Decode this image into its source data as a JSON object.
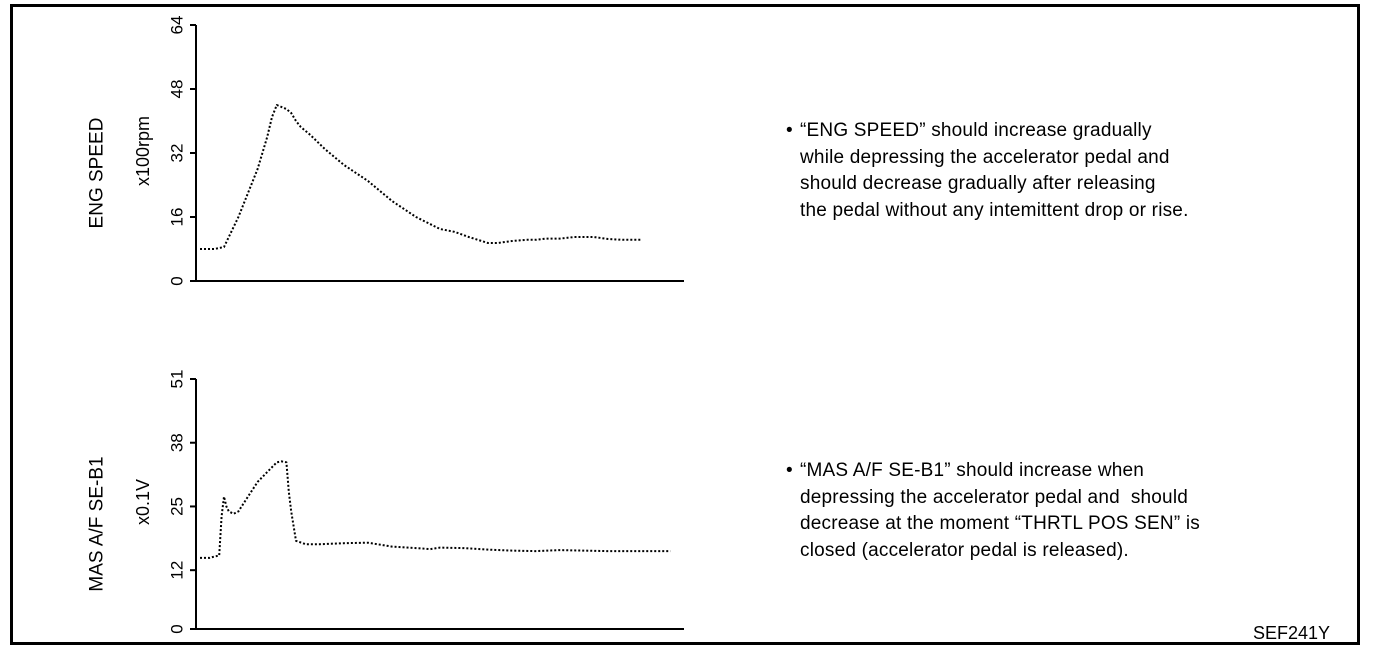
{
  "chart_data": [
    {
      "type": "line",
      "ylabel": "ENG SPEED",
      "yunit": "x100rpm",
      "yticks": [
        "0",
        "16",
        "32",
        "48",
        "64"
      ],
      "ylim": [
        0,
        64
      ],
      "xlim": [
        0,
        100
      ],
      "x": [
        0,
        3,
        5,
        6,
        8,
        10,
        12,
        14,
        15,
        16,
        18,
        19,
        20,
        21,
        23,
        26,
        30,
        35,
        40,
        45,
        50,
        53,
        56,
        60,
        62,
        65,
        68,
        70,
        72,
        75,
        78,
        82,
        85,
        88,
        90,
        92
      ],
      "series": [
        {
          "values": [
            8,
            8,
            8.5,
            11,
            16,
            22,
            28,
            36,
            41,
            44,
            43,
            42,
            40,
            38.5,
            36.5,
            33,
            29,
            25,
            20,
            16,
            13,
            12.3,
            11,
            9.5,
            9.5,
            10,
            10.3,
            10.3,
            10.6,
            10.6,
            11,
            11,
            10.5,
            10.3,
            10.3,
            10.3
          ]
        }
      ]
    },
    {
      "type": "line",
      "ylabel": "MAS A/F SE-B1",
      "yunit": "x0.1V",
      "yticks": [
        "0",
        "12",
        "25",
        "38",
        "51"
      ],
      "ylim": [
        0,
        51
      ],
      "xlim": [
        0,
        100
      ],
      "x": [
        0,
        2,
        3,
        4,
        4.5,
        5,
        5.5,
        6,
        7,
        8,
        9,
        10,
        11,
        12,
        13,
        14,
        15,
        16,
        17,
        18,
        18.5,
        19,
        20,
        22,
        25,
        30,
        35,
        40,
        45,
        48,
        50,
        55,
        60,
        65,
        70,
        75,
        80,
        85,
        90,
        95,
        98
      ],
      "series": [
        {
          "values": [
            14.5,
            14.5,
            14.8,
            15,
            23,
            27,
            25,
            24,
            23.5,
            24,
            25.5,
            27,
            28.5,
            30,
            31,
            32,
            33,
            34,
            34.2,
            34,
            28,
            24,
            18,
            17.3,
            17.3,
            17.5,
            17.6,
            16.8,
            16.5,
            16.3,
            16.6,
            16.5,
            16.2,
            16,
            15.9,
            16.1,
            16,
            15.9,
            15.9,
            15.9,
            15.9
          ]
        }
      ]
    }
  ],
  "notes": [
    {
      "bullet": "•",
      "lines": [
        "“ENG SPEED” should increase gradually",
        "while depressing the accelerator pedal and",
        "should decrease gradually after releasing",
        "the pedal without any intemittent drop or rise."
      ]
    },
    {
      "bullet": "•",
      "lines": [
        "“MAS A/F SE-B1” should increase when",
        "depressing the accelerator pedal and  should",
        "decrease at the moment “THRTL POS SEN” is",
        "closed (accelerator pedal is released)."
      ]
    }
  ],
  "figure_code": "SEF241Y"
}
